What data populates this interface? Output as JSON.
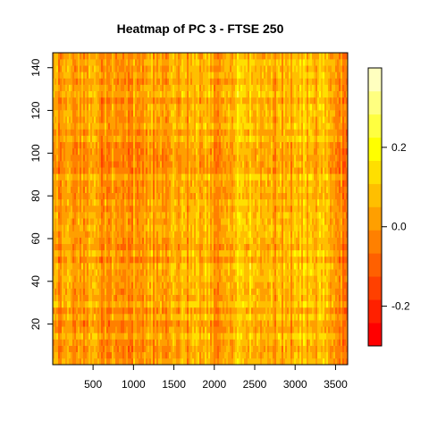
{
  "chart_data": {
    "type": "heatmap",
    "title": "Heatmap of PC 3  - FTSE 250",
    "xlabel": "",
    "ylabel": "",
    "x_range": [
      1,
      3650
    ],
    "y_range": [
      1,
      147
    ],
    "x_ticks": [
      500,
      1000,
      1500,
      2000,
      2500,
      3000,
      3500
    ],
    "x_tick_labels": [
      "500",
      "1000",
      "1500",
      "2000",
      "2500",
      "3000",
      "3500"
    ],
    "y_ticks": [
      20,
      40,
      60,
      80,
      100,
      120,
      140
    ],
    "y_tick_labels": [
      "20",
      "40",
      "60",
      "80",
      "100",
      "120",
      "140"
    ],
    "color_scale": {
      "range": [
        -0.3,
        0.4
      ],
      "ticks": [
        -0.2,
        0.0,
        0.2
      ],
      "tick_labels": [
        "-0.2",
        "0.0",
        "0.2"
      ],
      "colors": [
        "#FF0000",
        "#FF2000",
        "#FF4000",
        "#FF6000",
        "#FF8000",
        "#FF9F00",
        "#FFBF00",
        "#FFDF00",
        "#FFFF00",
        "#FFFF40",
        "#FFFF80",
        "#FFFFBF"
      ]
    },
    "column_trend": [
      {
        "x": 1,
        "v": 0.0
      },
      {
        "x": 400,
        "v": 0.01
      },
      {
        "x": 800,
        "v": 0.0
      },
      {
        "x": 1200,
        "v": 0.02
      },
      {
        "x": 1600,
        "v": 0.03
      },
      {
        "x": 1900,
        "v": 0.05
      },
      {
        "x": 2100,
        "v": -0.03
      },
      {
        "x": 2350,
        "v": 0.12
      },
      {
        "x": 2600,
        "v": 0.04
      },
      {
        "x": 2900,
        "v": 0.02
      },
      {
        "x": 3100,
        "v": 0.08
      },
      {
        "x": 3350,
        "v": 0.06
      },
      {
        "x": 3500,
        "v": -0.02
      },
      {
        "x": 3650,
        "v": -0.06
      }
    ]
  }
}
